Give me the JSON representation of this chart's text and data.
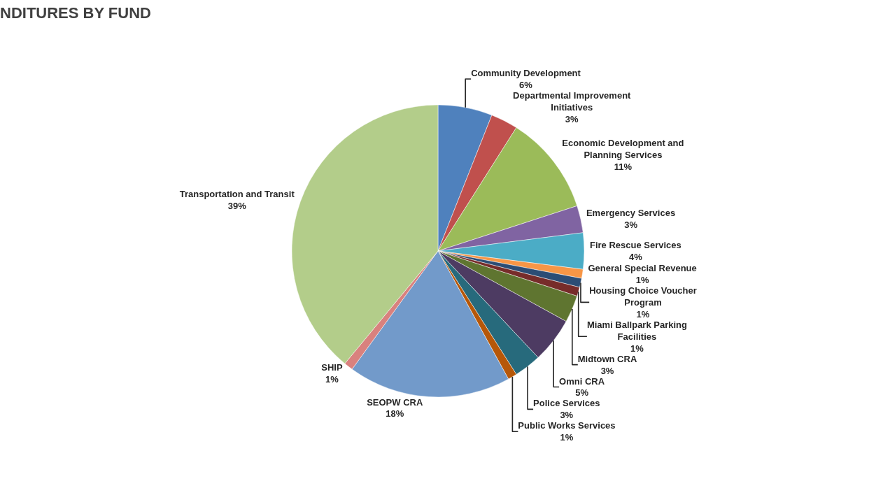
{
  "chart_data": {
    "type": "pie",
    "title": "NDITURES BY FUND",
    "categories": [
      "Community Development",
      "Departmental Improvement Initiatives",
      "Economic Development and Planning Services",
      "Emergency Services",
      "Fire Rescue Services",
      "General Special Revenue",
      "Housing Choice Voucher Program",
      "Miami Ballpark Parking Facilities",
      "Midtown CRA",
      "Omni CRA",
      "Police Services",
      "Public Works Services",
      "SEOPW CRA",
      "SHIP",
      "Transportation and Transit"
    ],
    "values": [
      6,
      3,
      11,
      3,
      4,
      1,
      1,
      1,
      3,
      5,
      3,
      1,
      18,
      1,
      39
    ],
    "value_labels": [
      "6%",
      "3%",
      "11%",
      "3%",
      "4%",
      "1%",
      "1%",
      "1%",
      "3%",
      "5%",
      "3%",
      "1%",
      "18%",
      "1%",
      "39%"
    ],
    "colors": [
      "#4f81bd",
      "#c0504d",
      "#9bbb59",
      "#8064a2",
      "#4bacc6",
      "#f79646",
      "#2c4d75",
      "#772c2a",
      "#5f7530",
      "#4d3b62",
      "#276a7c",
      "#b65708",
      "#729aca",
      "#d9817e",
      "#b3cd8a"
    ],
    "legend": false
  }
}
